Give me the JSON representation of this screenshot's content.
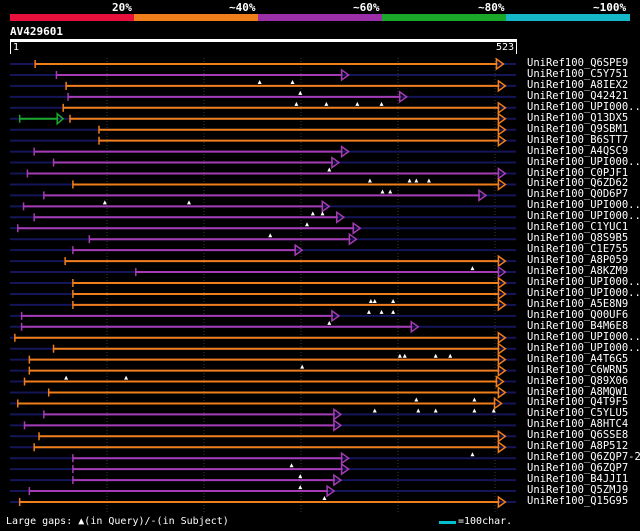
{
  "legend": {
    "labels": [
      "20%",
      "~40%",
      "~60%",
      "~80%",
      "~100%"
    ],
    "colors": [
      "#e8103c",
      "#f07e1a",
      "#9b2fa7",
      "#1aa82a",
      "#14b8c8"
    ]
  },
  "query": {
    "id": "AV429601",
    "start": "1",
    "end": "523",
    "length": 523
  },
  "hits": [
    {
      "label": "UniRef100_Q6SPE9",
      "color": "orange",
      "start": 26,
      "end": 510,
      "gaps": []
    },
    {
      "label": "UniRef100_C5Y751",
      "color": "purple",
      "start": 48,
      "end": 350,
      "gaps": [
        258,
        292
      ]
    },
    {
      "label": "UniRef100_A8IEX2",
      "color": "orange",
      "start": 58,
      "end": 512,
      "gaps": [
        300
      ]
    },
    {
      "label": "UniRef100_Q42421",
      "color": "purple",
      "start": 60,
      "end": 410,
      "gaps": [
        296,
        327,
        359,
        384
      ]
    },
    {
      "label": "UniRef100_UPI000...",
      "color": "orange",
      "start": 55,
      "end": 512,
      "gaps": []
    },
    {
      "label": "UniRef100_Q13DX5",
      "color": "orange",
      "start": 62,
      "end": 512,
      "gaps": []
    },
    {
      "label": "UniRef100_Q9SBM1",
      "color": "orange",
      "start": 92,
      "end": 512,
      "gaps": []
    },
    {
      "label": "UniRef100_B6STT7",
      "color": "orange",
      "start": 92,
      "end": 512,
      "gaps": []
    },
    {
      "label": "UniRef100_A4QSC9",
      "color": "purple",
      "start": 25,
      "end": 350,
      "gaps": []
    },
    {
      "label": "UniRef100_UPI000...",
      "color": "purple",
      "start": 45,
      "end": 340,
      "gaps": [
        330
      ]
    },
    {
      "label": "UniRef100_C0PJF1",
      "color": "purple",
      "start": 18,
      "end": 512,
      "gaps": [
        372,
        413,
        420,
        433
      ]
    },
    {
      "label": "UniRef100_Q6ZD62",
      "color": "orange",
      "start": 65,
      "end": 512,
      "gaps": [
        385,
        393
      ]
    },
    {
      "label": "UniRef100_Q0D6P7",
      "color": "purple",
      "start": 35,
      "end": 492,
      "gaps": [
        98,
        185
      ]
    },
    {
      "label": "UniRef100_UPI000...",
      "color": "purple",
      "start": 14,
      "end": 330,
      "gaps": [
        313,
        323
      ]
    },
    {
      "label": "UniRef100_UPI000...",
      "color": "purple",
      "start": 25,
      "end": 345,
      "gaps": [
        307
      ]
    },
    {
      "label": "UniRef100_C1YUC1",
      "color": "purple",
      "start": 8,
      "end": 362,
      "gaps": [
        269
      ]
    },
    {
      "label": "UniRef100_Q8S9B5",
      "color": "purple",
      "start": 82,
      "end": 358,
      "gaps": []
    },
    {
      "label": "UniRef100_C1E755",
      "color": "purple",
      "start": 65,
      "end": 302,
      "gaps": []
    },
    {
      "label": "UniRef100_A8P059",
      "color": "orange",
      "start": 57,
      "end": 512,
      "gaps": [
        478
      ]
    },
    {
      "label": "UniRef100_A8KZM9",
      "color": "purple",
      "start": 130,
      "end": 512,
      "gaps": []
    },
    {
      "label": "UniRef100_UPI000...",
      "color": "orange",
      "start": 65,
      "end": 512,
      "gaps": []
    },
    {
      "label": "UniRef100_UPI000...",
      "color": "orange",
      "start": 65,
      "end": 512,
      "gaps": [
        373,
        377,
        396
      ]
    },
    {
      "label": "UniRef100_A5E8N9",
      "color": "orange",
      "start": 65,
      "end": 512,
      "gaps": [
        371,
        384,
        396
      ]
    },
    {
      "label": "UniRef100_Q00UF6",
      "color": "purple",
      "start": 12,
      "end": 340,
      "gaps": [
        330
      ]
    },
    {
      "label": "UniRef100_B4M6E8",
      "color": "purple",
      "start": 12,
      "end": 422,
      "gaps": []
    },
    {
      "label": "UniRef100_UPI000...",
      "color": "orange",
      "start": 5,
      "end": 512,
      "gaps": []
    },
    {
      "label": "UniRef100_UPI000...",
      "color": "orange",
      "start": 45,
      "end": 512,
      "gaps": [
        403,
        408,
        440,
        455
      ]
    },
    {
      "label": "UniRef100_A4T6G5",
      "color": "orange",
      "start": 20,
      "end": 512,
      "gaps": [
        302
      ]
    },
    {
      "label": "UniRef100_C6WRN5",
      "color": "orange",
      "start": 20,
      "end": 512,
      "gaps": [
        58,
        120
      ]
    },
    {
      "label": "UniRef100_Q89X06",
      "color": "orange",
      "start": 15,
      "end": 510,
      "gaps": []
    },
    {
      "label": "UniRef100_A8MQW1",
      "color": "orange",
      "start": 40,
      "end": 512,
      "gaps": [
        420,
        480
      ]
    },
    {
      "label": "UniRef100_Q4T9F5",
      "color": "orange",
      "start": 8,
      "end": 508,
      "gaps": [
        377,
        422,
        440,
        480,
        500
      ]
    },
    {
      "label": "UniRef100_C5YLU5",
      "color": "purple",
      "start": 35,
      "end": 342,
      "gaps": []
    },
    {
      "label": "UniRef100_A8HTC4",
      "color": "purple",
      "start": 15,
      "end": 342,
      "gaps": []
    },
    {
      "label": "UniRef100_Q6SSE8",
      "color": "orange",
      "start": 30,
      "end": 512,
      "gaps": []
    },
    {
      "label": "UniRef100_A8P512",
      "color": "orange",
      "start": 25,
      "end": 512,
      "gaps": [
        478
      ]
    },
    {
      "label": "UniRef100_Q6ZQP7-2",
      "color": "purple",
      "start": 65,
      "end": 350,
      "gaps": [
        291
      ]
    },
    {
      "label": "UniRef100_Q6ZQP7",
      "color": "purple",
      "start": 65,
      "end": 350,
      "gaps": [
        300
      ]
    },
    {
      "label": "UniRef100_B4JJI1",
      "color": "purple",
      "start": 65,
      "end": 342,
      "gaps": [
        300
      ]
    },
    {
      "label": "UniRef100_Q5ZMJ9",
      "color": "purple",
      "start": 20,
      "end": 335,
      "gaps": [
        325
      ]
    },
    {
      "label": "UniRef100_Q15G95",
      "color": "orange",
      "start": 10,
      "end": 512,
      "gaps": []
    }
  ],
  "single_hit": {
    "color": "green",
    "start": 10,
    "end": 55
  },
  "footer": {
    "large_gaps": "Large gaps:",
    "in_query": "(in Query)/-",
    "in_subject": "(in Subject)",
    "scale": "=100char."
  }
}
